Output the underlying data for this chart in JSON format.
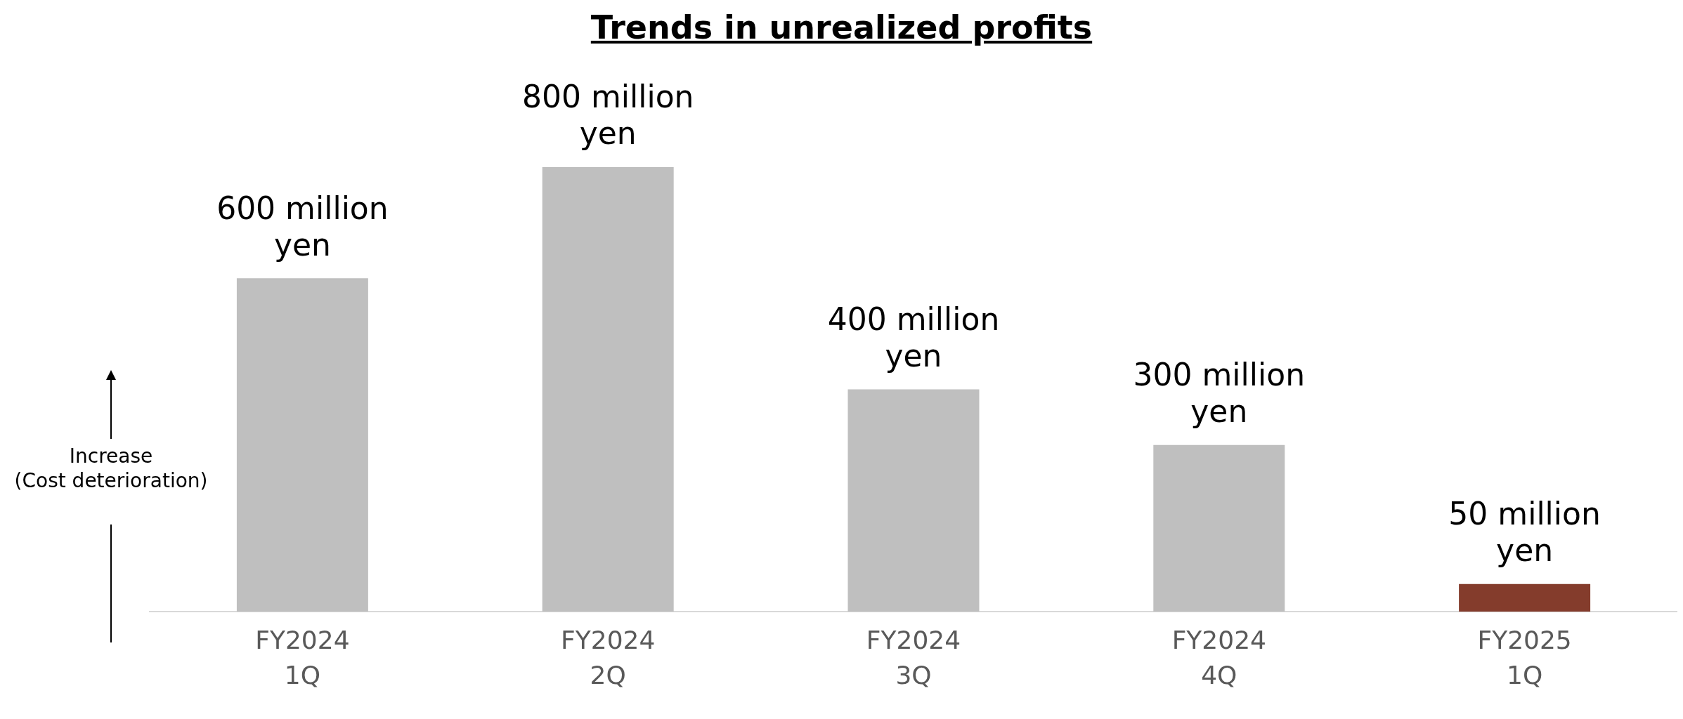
{
  "chart_data": {
    "type": "bar",
    "title": "Trends in unrealized profits",
    "categories": [
      "FY2024 1Q",
      "FY2024 2Q",
      "FY2024 3Q",
      "FY2024 4Q",
      "FY2025 1Q"
    ],
    "values": [
      600,
      800,
      400,
      300,
      50
    ],
    "colors": [
      "#bfbfbf",
      "#bfbfbf",
      "#bfbfbf",
      "#bfbfbf",
      "#843c2c"
    ],
    "value_labels": [
      "600 million yen",
      "800 million yen",
      "400 million yen",
      "300 million yen",
      "50 million yen"
    ],
    "annotations": [
      "Increase\n(Cost deterioration)"
    ],
    "grid": false,
    "legend": false,
    "tick_labels": "x"
  }
}
